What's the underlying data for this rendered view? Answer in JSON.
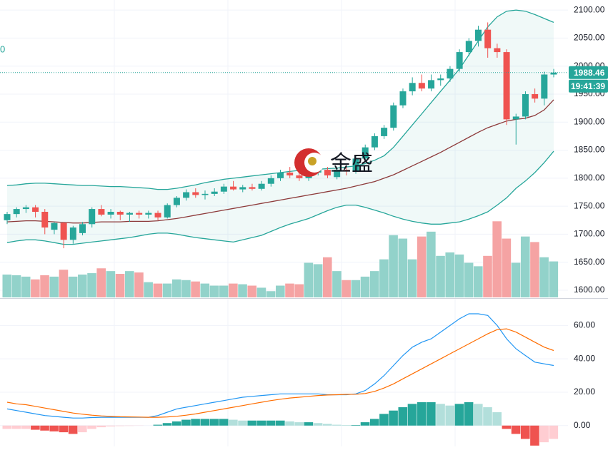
{
  "chart_data": [
    {
      "type": "candlestick",
      "open": [
        1725,
        1736,
        1745,
        1748,
        1740,
        1708,
        1720,
        1690,
        1702,
        1718,
        1745,
        1735,
        1740,
        1735,
        1738,
        1735,
        1738,
        1730,
        1752,
        1765,
        1775,
        1770,
        1772,
        1776,
        1785,
        1780,
        1784,
        1781,
        1790,
        1800,
        1810,
        1805,
        1800,
        1810,
        1815,
        1802,
        1815,
        1812,
        1835,
        1855,
        1875,
        1890,
        1930,
        1955,
        1970,
        1960,
        1975,
        1978,
        1995,
        2025,
        2045,
        2065,
        2032,
        2025,
        1905,
        1910,
        1950,
        1942,
        1985
      ],
      "high": [
        1740,
        1748,
        1752,
        1752,
        1745,
        1722,
        1722,
        1715,
        1722,
        1748,
        1752,
        1745,
        1742,
        1740,
        1742,
        1742,
        1742,
        1755,
        1768,
        1780,
        1782,
        1778,
        1782,
        1790,
        1795,
        1788,
        1790,
        1795,
        1805,
        1815,
        1820,
        1815,
        1815,
        1822,
        1820,
        1818,
        1822,
        1840,
        1860,
        1880,
        1895,
        1935,
        1960,
        1980,
        1985,
        1985,
        1985,
        2000,
        2030,
        2050,
        2072,
        2078,
        2040,
        2030,
        1915,
        1955,
        1960,
        1990,
        1995
      ],
      "low": [
        1718,
        1730,
        1738,
        1730,
        1700,
        1700,
        1675,
        1683,
        1698,
        1712,
        1732,
        1728,
        1725,
        1722,
        1728,
        1728,
        1725,
        1728,
        1748,
        1760,
        1765,
        1762,
        1768,
        1772,
        1778,
        1775,
        1778,
        1778,
        1785,
        1795,
        1800,
        1795,
        1795,
        1805,
        1800,
        1798,
        1805,
        1808,
        1830,
        1850,
        1870,
        1885,
        1925,
        1948,
        1955,
        1955,
        1965,
        1972,
        1990,
        2018,
        2035,
        2015,
        2015,
        1895,
        1860,
        1905,
        1935,
        1930,
        1980
      ],
      "close": [
        1736,
        1745,
        1748,
        1740,
        1712,
        1720,
        1690,
        1712,
        1718,
        1745,
        1735,
        1740,
        1735,
        1738,
        1735,
        1738,
        1730,
        1752,
        1765,
        1775,
        1770,
        1772,
        1776,
        1785,
        1780,
        1784,
        1781,
        1790,
        1800,
        1810,
        1805,
        1800,
        1810,
        1815,
        1805,
        1815,
        1812,
        1835,
        1855,
        1875,
        1890,
        1930,
        1955,
        1970,
        1960,
        1975,
        1978,
        1995,
        2025,
        2045,
        2065,
        2032,
        2025,
        1905,
        1910,
        1950,
        1942,
        1985,
        1988.46
      ],
      "up_color": "#26a69a",
      "down_color": "#ef5350",
      "overlays": [
        {
          "color": "#26a69a",
          "values": [
            1787,
            1788,
            1790,
            1791,
            1791,
            1790,
            1789,
            1788,
            1787,
            1787,
            1786,
            1785,
            1785,
            1784,
            1783,
            1782,
            1780,
            1780,
            1782,
            1785,
            1788,
            1792,
            1795,
            1798,
            1800,
            1802,
            1804,
            1806,
            1808,
            1810,
            1812,
            1814,
            1815,
            1816,
            1817,
            1818,
            1820,
            1822,
            1826,
            1832,
            1840,
            1855,
            1875,
            1895,
            1915,
            1935,
            1955,
            1975,
            1995,
            2020,
            2045,
            2070,
            2088,
            2098,
            2100,
            2098,
            2092,
            2085,
            2078
          ]
        },
        {
          "color": "#8d3a3a",
          "values": [
            1722,
            1723,
            1724,
            1724,
            1723,
            1722,
            1721,
            1720,
            1720,
            1721,
            1722,
            1722,
            1722,
            1723,
            1723,
            1723,
            1724,
            1726,
            1728,
            1731,
            1734,
            1737,
            1740,
            1743,
            1746,
            1749,
            1752,
            1755,
            1758,
            1761,
            1764,
            1767,
            1770,
            1773,
            1776,
            1779,
            1782,
            1786,
            1790,
            1794,
            1800,
            1806,
            1814,
            1822,
            1830,
            1838,
            1846,
            1855,
            1864,
            1873,
            1882,
            1890,
            1896,
            1902,
            1905,
            1907,
            1912,
            1922,
            1940
          ]
        },
        {
          "color": "#26a69a",
          "values": [
            1685,
            1688,
            1690,
            1690,
            1688,
            1685,
            1682,
            1682,
            1684,
            1686,
            1688,
            1690,
            1692,
            1694,
            1697,
            1700,
            1702,
            1702,
            1700,
            1697,
            1694,
            1692,
            1690,
            1688,
            1686,
            1690,
            1694,
            1698,
            1705,
            1712,
            1718,
            1723,
            1728,
            1735,
            1742,
            1748,
            1752,
            1752,
            1748,
            1743,
            1738,
            1732,
            1727,
            1723,
            1720,
            1718,
            1718,
            1720,
            1722,
            1727,
            1733,
            1740,
            1752,
            1765,
            1782,
            1795,
            1810,
            1828,
            1848
          ]
        }
      ],
      "volume": {
        "values": [
          33,
          32,
          30,
          26,
          32,
          30,
          40,
          30,
          33,
          35,
          42,
          38,
          34,
          38,
          36,
          22,
          20,
          20,
          26,
          25,
          23,
          20,
          17,
          17,
          20,
          19,
          17,
          14,
          9,
          17,
          20,
          19,
          50,
          48,
          58,
          38,
          25,
          25,
          30,
          38,
          55,
          90,
          85,
          55,
          88,
          95,
          60,
          65,
          62,
          50,
          45,
          60,
          110,
          85,
          50,
          88,
          80,
          58,
          52
        ],
        "up_color": "#92d2ca",
        "down_color": "#f5a3a3"
      },
      "ylim": [
        1586,
        2118
      ],
      "yticks": [
        {
          "value": 1600,
          "label": "1600.00"
        },
        {
          "value": 1650,
          "label": "1650.00"
        },
        {
          "value": 1700,
          "label": "1700.00"
        },
        {
          "value": 1750,
          "label": "1750.00"
        },
        {
          "value": 1800,
          "label": "1800.00"
        },
        {
          "value": 1850,
          "label": "1850.00"
        },
        {
          "value": 1900,
          "label": "1900.00"
        },
        {
          "value": 1950,
          "label": "1950.00"
        },
        {
          "value": 2000,
          "label": "2000.00"
        },
        {
          "value": 2050,
          "label": "2050.00"
        },
        {
          "value": 2100,
          "label": "2100.00"
        }
      ],
      "grid": true,
      "last_price": 1988.46,
      "countdown": "19:41:39",
      "watermark": "金盛",
      "corner_text": "0"
    },
    {
      "type": "macd",
      "series": [
        {
          "color": "#2196f3",
          "values": [
            10,
            9,
            8,
            7,
            6,
            5.5,
            5,
            4.5,
            4.5,
            4.8,
            5,
            5,
            5,
            5,
            5,
            5,
            6,
            8,
            10,
            11,
            12,
            13,
            14,
            15,
            16,
            17,
            17.5,
            18,
            18.5,
            19,
            19,
            19,
            19,
            19,
            18.5,
            18.5,
            18.5,
            19,
            21,
            25,
            30,
            36,
            42,
            47,
            50,
            52,
            56,
            60,
            64,
            67,
            67,
            66,
            60,
            52,
            46,
            42,
            38,
            37,
            36
          ]
        },
        {
          "color": "#ff6d00",
          "values": [
            14,
            13,
            12.5,
            11.5,
            10.5,
            9.5,
            8.5,
            7.5,
            6.8,
            6.2,
            5.8,
            5.5,
            5.3,
            5.2,
            5.1,
            5,
            5,
            5.2,
            5.6,
            6.2,
            7,
            8,
            9,
            10,
            11,
            12,
            13,
            14,
            15,
            15.8,
            16.5,
            17,
            17.5,
            18,
            18.3,
            18.5,
            18.7,
            18.8,
            19.2,
            20.5,
            22.5,
            25,
            28,
            31,
            34,
            37,
            40,
            43,
            46,
            49,
            52,
            55,
            57.5,
            58,
            56,
            53,
            50,
            47,
            45
          ]
        }
      ],
      "histogram": {
        "values": [
          -2,
          -2,
          -2,
          -2.5,
          -3,
          -3.5,
          -4,
          -5,
          -4,
          -2,
          -1,
          -0.5,
          -0.3,
          -0.2,
          -0.1,
          0,
          0.5,
          1.5,
          2.5,
          3.5,
          4,
          4,
          4,
          4,
          3.5,
          3,
          3,
          3,
          3,
          3,
          2.5,
          2,
          2,
          1.5,
          1,
          0.5,
          0.3,
          0.3,
          2,
          4,
          7,
          9,
          11,
          13,
          14,
          14,
          13,
          12,
          13,
          14,
          13,
          11,
          8,
          -2,
          -5,
          -8,
          -12,
          -10,
          -8
        ],
        "colors": [
          "#26a69a",
          "#b2dfdb",
          "#ffcdd2",
          "#ef5350"
        ]
      },
      "ylim": [
        -12.5,
        76.4
      ],
      "yticks": [
        {
          "value": 0,
          "label": "0.00"
        },
        {
          "value": 20,
          "label": "20.00"
        },
        {
          "value": 40,
          "label": "40.00"
        },
        {
          "value": 60,
          "label": "60.00"
        }
      ],
      "grid": true
    }
  ]
}
